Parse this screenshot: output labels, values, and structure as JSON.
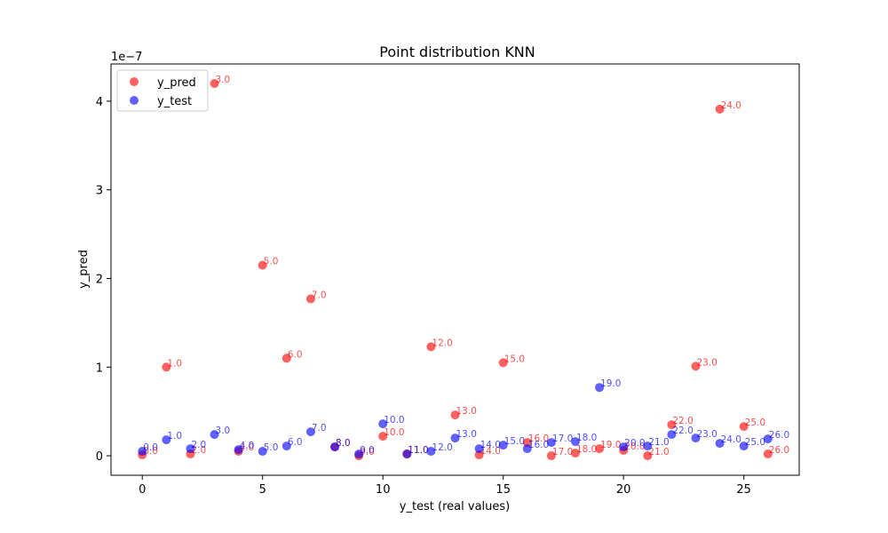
{
  "chart_data": {
    "type": "scatter",
    "title": "Point distribution KNN",
    "xlabel": "y_test (real values)",
    "ylabel": "y_pred",
    "y_offset_text": "1e−7",
    "xlim": [
      -1.3,
      27.3
    ],
    "ylim": [
      -0.22,
      4.42
    ],
    "x_ticks": [
      0,
      5,
      10,
      15,
      20,
      25
    ],
    "x_tick_labels": [
      "0",
      "5",
      "10",
      "15",
      "20",
      "25"
    ],
    "y_ticks": [
      0,
      1,
      2,
      3,
      4
    ],
    "y_tick_labels": [
      "0",
      "1",
      "2",
      "3",
      "4"
    ],
    "grid": false,
    "legend_position": "top-left",
    "series": [
      {
        "name": "y_pred",
        "color": "#ff0000",
        "x": [
          0,
          1,
          2,
          3,
          4,
          5,
          6,
          7,
          8,
          9,
          10,
          11,
          12,
          13,
          14,
          15,
          16,
          17,
          18,
          19,
          20,
          21,
          22,
          23,
          24,
          25,
          26
        ],
        "y": [
          0.01,
          1.0,
          0.02,
          4.2,
          0.05,
          2.15,
          1.1,
          1.77,
          0.1,
          0.0,
          0.22,
          0.02,
          1.23,
          0.46,
          0.01,
          1.05,
          0.15,
          0.0,
          0.03,
          0.08,
          0.06,
          0.0,
          0.35,
          1.01,
          3.91,
          0.33,
          0.02
        ],
        "point_labels": [
          "0.0",
          "1.0",
          "2.0",
          "3.0",
          "4.0",
          "5.0",
          "6.0",
          "7.0",
          "8.0",
          "9.0",
          "10.0",
          "11.0",
          "12.0",
          "13.0",
          "14.0",
          "15.0",
          "16.0",
          "17.0",
          "18.0",
          "19.0",
          "20.0",
          "21.0",
          "22.0",
          "23.0",
          "24.0",
          "25.0",
          "26.0"
        ]
      },
      {
        "name": "y_test",
        "color": "#0000ff",
        "x": [
          0,
          1,
          2,
          3,
          4,
          5,
          6,
          7,
          8,
          9,
          10,
          11,
          12,
          13,
          14,
          15,
          16,
          17,
          18,
          19,
          20,
          21,
          22,
          23,
          24,
          25,
          26
        ],
        "y": [
          0.05,
          0.18,
          0.08,
          0.24,
          0.07,
          0.05,
          0.11,
          0.27,
          0.1,
          0.02,
          0.36,
          0.02,
          0.05,
          0.2,
          0.08,
          0.12,
          0.08,
          0.15,
          0.16,
          0.77,
          0.1,
          0.11,
          0.24,
          0.2,
          0.14,
          0.11,
          0.19
        ],
        "point_labels": [
          "0.0",
          "1.0",
          "2.0",
          "3.0",
          "4.0",
          "5.0",
          "6.0",
          "7.0",
          "8.0",
          "9.0",
          "10.0",
          "11.0",
          "12.0",
          "13.0",
          "14.0",
          "15.0",
          "16.0",
          "17.0",
          "18.0",
          "19.0",
          "20.0",
          "21.0",
          "22.0",
          "23.0",
          "24.0",
          "25.0",
          "26.0"
        ]
      }
    ]
  }
}
